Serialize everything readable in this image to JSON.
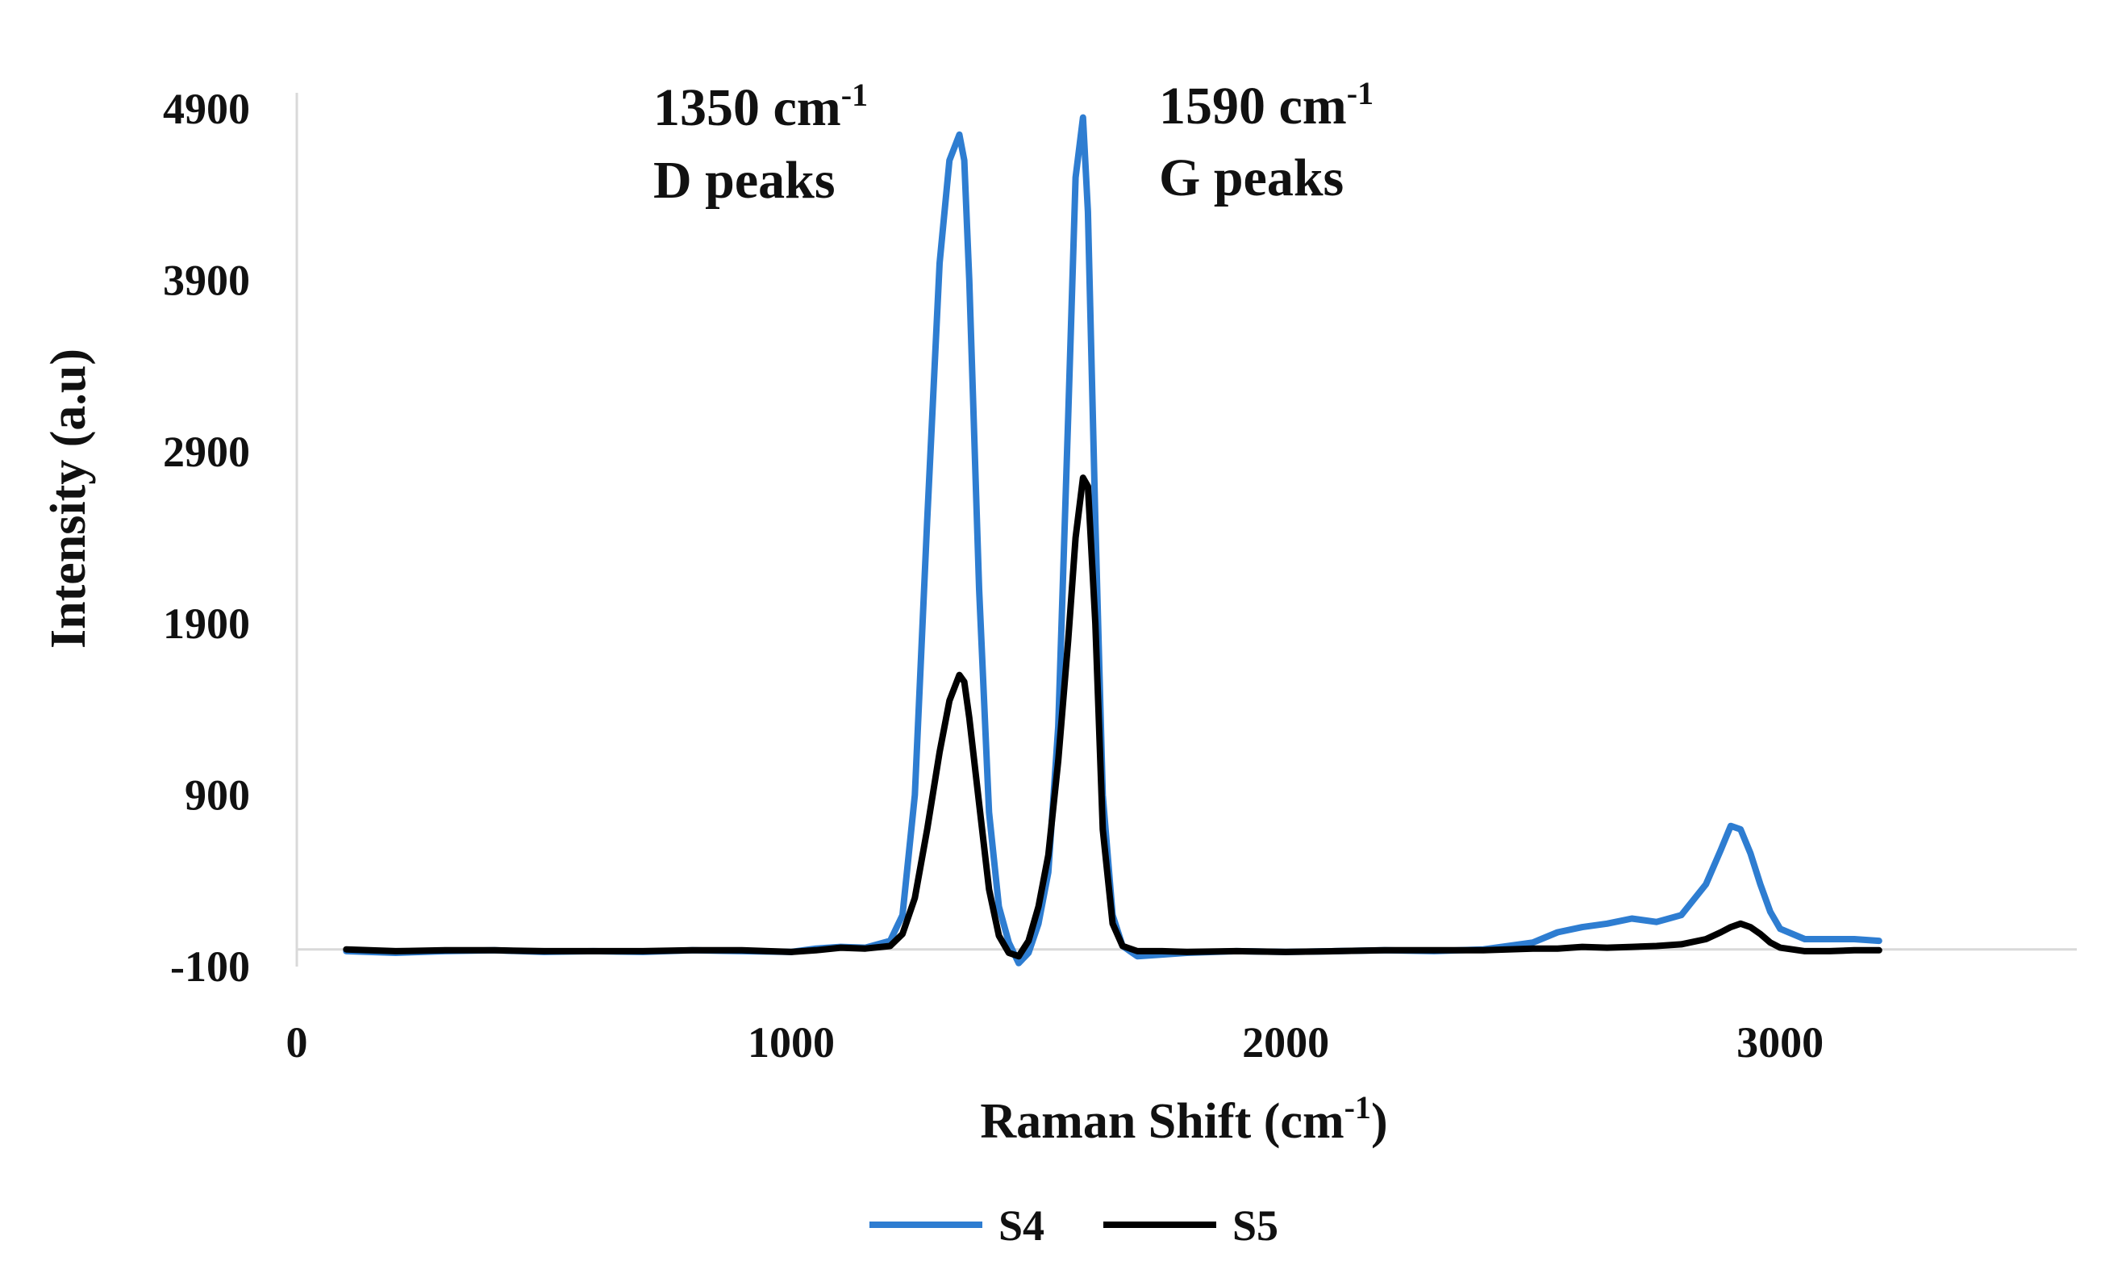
{
  "chart_data": {
    "type": "line",
    "xlabel": {
      "main": "Raman Shift (cm",
      "sup": "-1",
      "close": ")"
    },
    "ylabel": "Intensity (a.u)",
    "xlim": [
      0,
      3600
    ],
    "ylim": [
      -100,
      4900
    ],
    "x_ticks": [
      "0",
      "1000",
      "2000",
      "3000"
    ],
    "y_ticks": [
      "-100",
      "900",
      "1900",
      "2900",
      "3900",
      "4900"
    ],
    "grid": false,
    "legend_position": "bottom",
    "annotations": [
      {
        "line1": "1350 cm",
        "sup": "-1",
        "line2": "D peaks"
      },
      {
        "line1": "1590 cm",
        "sup": "-1",
        "line2": "G peaks"
      }
    ],
    "series": [
      {
        "name": "S4",
        "color": "#2e7dd1",
        "x": [
          100,
          200,
          300,
          400,
          500,
          600,
          700,
          800,
          900,
          1000,
          1050,
          1100,
          1150,
          1200,
          1225,
          1250,
          1275,
          1300,
          1320,
          1340,
          1350,
          1360,
          1380,
          1400,
          1420,
          1440,
          1460,
          1480,
          1500,
          1520,
          1540,
          1560,
          1575,
          1590,
          1600,
          1615,
          1630,
          1650,
          1670,
          1700,
          1750,
          1800,
          1900,
          2000,
          2100,
          2200,
          2300,
          2400,
          2500,
          2550,
          2600,
          2650,
          2700,
          2750,
          2800,
          2850,
          2880,
          2900,
          2920,
          2940,
          2960,
          2980,
          3000,
          3050,
          3100,
          3150,
          3200
        ],
        "y": [
          -10,
          -20,
          -10,
          -5,
          -15,
          -10,
          -15,
          -5,
          -10,
          -15,
          5,
          15,
          10,
          50,
          200,
          900,
          2500,
          4000,
          4600,
          4750,
          4600,
          3900,
          2100,
          800,
          250,
          40,
          -80,
          -20,
          150,
          450,
          1300,
          3100,
          4500,
          4850,
          4300,
          2500,
          900,
          200,
          20,
          -40,
          -30,
          -20,
          -10,
          -15,
          -10,
          -5,
          -10,
          0,
          40,
          100,
          130,
          150,
          180,
          160,
          200,
          380,
          580,
          720,
          700,
          560,
          380,
          220,
          120,
          60,
          60,
          60,
          50
        ]
      },
      {
        "name": "S5",
        "color": "#000000",
        "x": [
          100,
          200,
          300,
          400,
          500,
          600,
          700,
          800,
          900,
          1000,
          1050,
          1100,
          1150,
          1200,
          1225,
          1250,
          1275,
          1300,
          1320,
          1340,
          1350,
          1360,
          1380,
          1400,
          1420,
          1440,
          1460,
          1480,
          1500,
          1520,
          1540,
          1560,
          1575,
          1590,
          1600,
          1615,
          1630,
          1650,
          1670,
          1700,
          1750,
          1800,
          1900,
          2000,
          2100,
          2200,
          2300,
          2400,
          2500,
          2550,
          2600,
          2650,
          2700,
          2750,
          2800,
          2850,
          2880,
          2900,
          2920,
          2940,
          2960,
          2980,
          3000,
          3050,
          3100,
          3150,
          3200
        ],
        "y": [
          0,
          -10,
          -5,
          -5,
          -10,
          -10,
          -10,
          -5,
          -5,
          -15,
          -5,
          10,
          5,
          20,
          90,
          300,
          700,
          1150,
          1450,
          1600,
          1560,
          1350,
          850,
          350,
          80,
          -20,
          -40,
          50,
          250,
          550,
          1100,
          1800,
          2400,
          2750,
          2700,
          1900,
          700,
          150,
          20,
          -10,
          -10,
          -15,
          -10,
          -15,
          -10,
          -5,
          -5,
          -5,
          5,
          5,
          15,
          10,
          15,
          20,
          30,
          60,
          100,
          130,
          150,
          130,
          90,
          40,
          10,
          -10,
          -10,
          -5,
          -5
        ]
      }
    ]
  }
}
